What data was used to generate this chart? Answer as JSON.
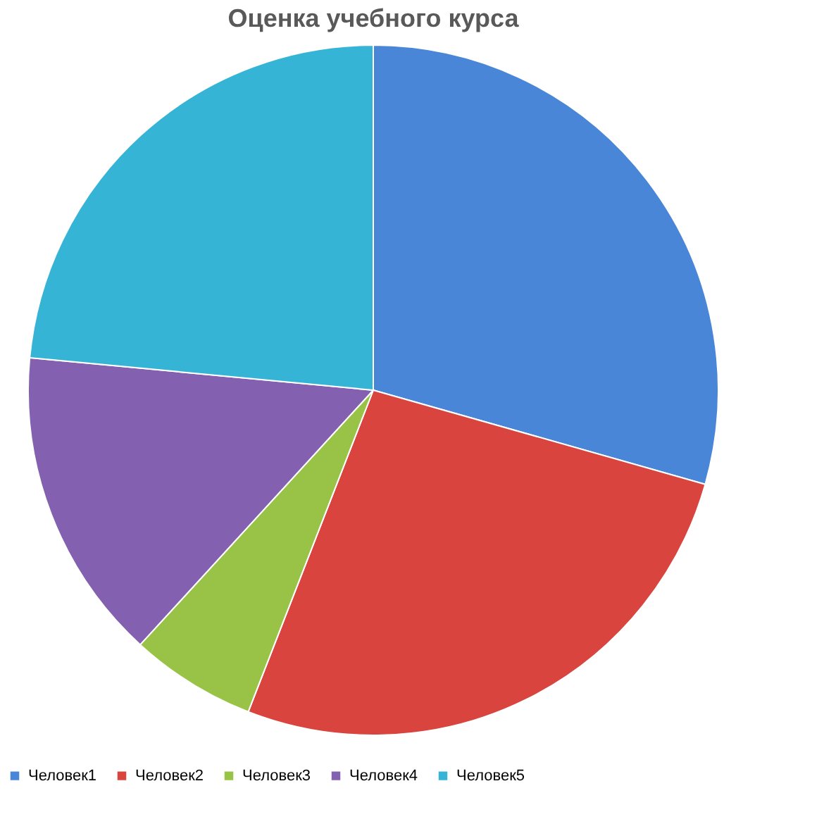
{
  "chart_data": {
    "type": "pie",
    "title": "Оценка учебного курса",
    "categories": [
      "Человек1",
      "Человек2",
      "Человек3",
      "Человек4",
      "Человек5"
    ],
    "values": [
      29.4,
      26.5,
      5.9,
      14.7,
      23.5
    ],
    "colors": [
      "#4a86d8",
      "#d9443f",
      "#98c346",
      "#8460b0",
      "#36b4d6"
    ],
    "legend": "bottom"
  }
}
